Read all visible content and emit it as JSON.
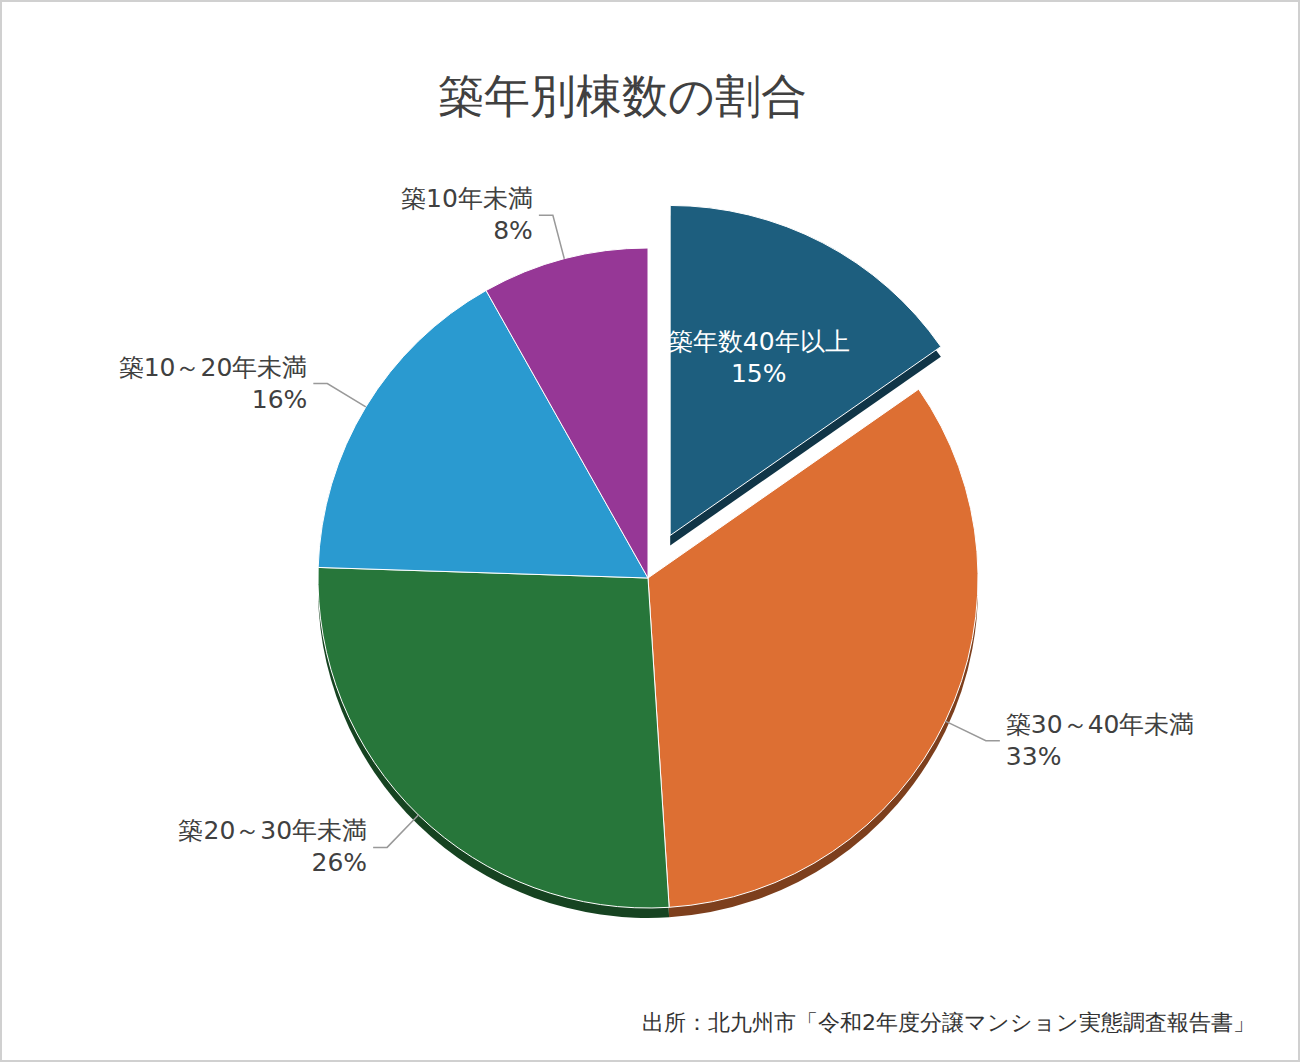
{
  "chart_data": {
    "type": "pie",
    "title": "築年別棟数の割合",
    "categories": [
      "築年数40年以上",
      "築30～40年未満",
      "築20～30年未満",
      "築10～20年未満",
      "築10年未満"
    ],
    "values": [
      15,
      33,
      26,
      16,
      8
    ],
    "value_labels": [
      "15%",
      "33%",
      "26%",
      "16%",
      "8%"
    ],
    "colors": [
      "#1d5e7e",
      "#dd6f33",
      "#27763a",
      "#2a9ad0",
      "#963796"
    ],
    "data_labels": true,
    "source": "出所：北九州市「令和2年度分譲マンション実態調査報告書」"
  }
}
